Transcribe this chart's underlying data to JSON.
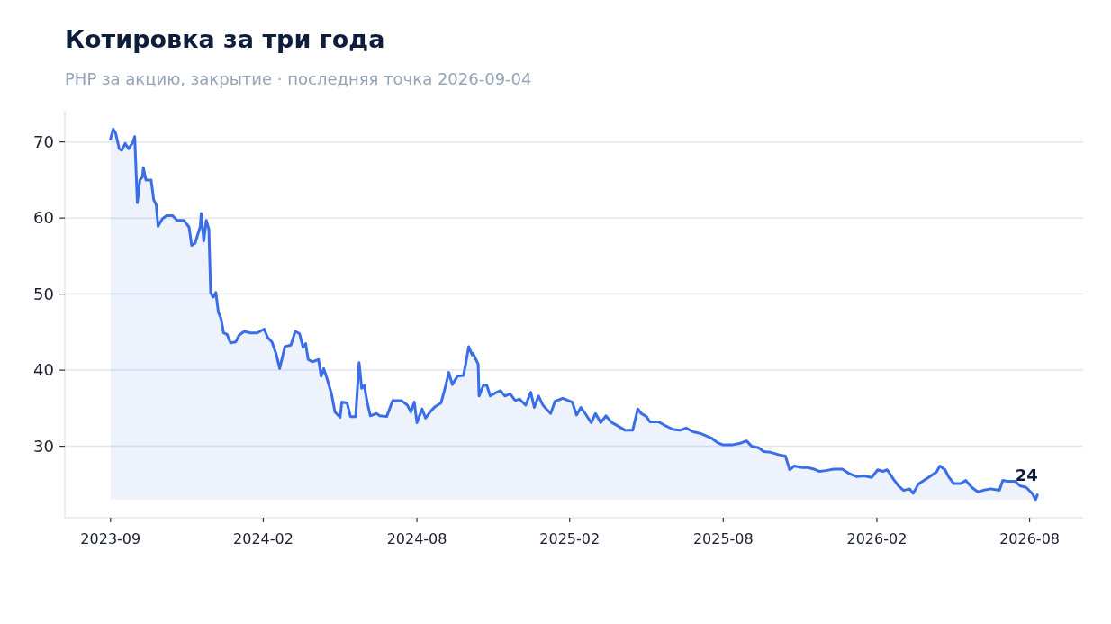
{
  "chart_data": {
    "type": "area",
    "title": "Котировка за три года",
    "subtitle": "PHP за акцию, закрытие · последняя точка 2026-09-04",
    "series": [
      {
        "color": "#3a6ee8",
        "x": [
          "2023-09-04",
          "2023-09-07",
          "2023-09-10",
          "2023-09-14",
          "2023-09-17",
          "2023-09-21",
          "2023-09-25",
          "2023-09-30",
          "2023-10-02",
          "2023-10-05",
          "2023-10-08",
          "2023-10-11",
          "2023-10-12",
          "2023-10-15",
          "2023-10-21",
          "2023-10-24",
          "2023-10-27",
          "2023-10-29",
          "2023-11-03",
          "2023-11-08",
          "2023-11-15",
          "2023-11-20",
          "2023-11-28",
          "2023-12-04",
          "2023-12-07",
          "2023-12-11",
          "2023-12-17",
          "2023-12-18",
          "2023-12-21",
          "2023-12-24",
          "2023-12-27",
          "2023-12-29",
          "2024-01-01",
          "2024-01-04",
          "2024-01-07",
          "2024-01-10",
          "2024-01-13",
          "2024-01-17",
          "2024-01-21",
          "2024-01-27",
          "2024-01-31",
          "2024-02-06",
          "2024-02-13",
          "2024-02-21",
          "2024-02-29",
          "2024-03-04",
          "2024-03-09",
          "2024-03-14",
          "2024-03-18",
          "2024-03-24",
          "2024-03-31",
          "2024-04-05",
          "2024-04-10",
          "2024-04-14",
          "2024-04-17",
          "2024-04-20",
          "2024-04-25",
          "2024-05-02",
          "2024-05-05",
          "2024-05-08",
          "2024-05-11",
          "2024-05-17",
          "2024-05-21",
          "2024-05-27",
          "2024-05-29",
          "2024-06-04",
          "2024-06-08",
          "2024-06-14",
          "2024-06-18",
          "2024-06-21",
          "2024-06-24",
          "2024-06-27",
          "2024-07-01",
          "2024-07-08",
          "2024-07-12",
          "2024-07-20",
          "2024-07-27",
          "2024-08-06",
          "2024-08-13",
          "2024-08-17",
          "2024-08-21",
          "2024-08-24",
          "2024-08-30",
          "2024-09-03",
          "2024-09-09",
          "2024-09-14",
          "2024-09-21",
          "2024-09-26",
          "2024-09-30",
          "2024-10-04",
          "2024-10-10",
          "2024-10-17",
          "2024-10-20",
          "2024-10-23",
          "2024-10-27",
          "2024-10-28",
          "2024-11-03",
          "2024-11-04",
          "2024-11-09",
          "2024-11-13",
          "2024-11-17",
          "2024-11-23",
          "2024-11-29",
          "2024-12-04",
          "2024-12-10",
          "2024-12-16",
          "2024-12-21",
          "2024-12-28",
          "2025-01-03",
          "2025-01-07",
          "2025-01-12",
          "2025-01-17",
          "2025-01-26",
          "2025-01-31",
          "2025-02-09",
          "2025-02-20",
          "2025-02-25",
          "2025-03-02",
          "2025-03-07",
          "2025-03-14",
          "2025-03-19",
          "2025-03-25",
          "2025-03-31",
          "2025-04-07",
          "2025-04-15",
          "2025-04-22",
          "2025-05-01",
          "2025-05-07",
          "2025-05-11",
          "2025-05-17",
          "2025-05-21",
          "2025-05-31",
          "2025-06-08",
          "2025-06-17",
          "2025-06-25",
          "2025-07-02",
          "2025-07-10",
          "2025-07-18",
          "2025-07-31",
          "2025-08-07",
          "2025-08-13",
          "2025-08-18",
          "2025-08-25",
          "2025-09-03",
          "2025-09-10",
          "2025-09-16",
          "2025-09-24",
          "2025-09-30",
          "2025-10-08",
          "2025-10-17",
          "2025-10-25",
          "2025-10-30",
          "2025-11-04",
          "2025-11-13",
          "2025-11-20",
          "2025-11-27",
          "2025-12-03",
          "2025-12-11",
          "2025-12-20",
          "2025-12-30",
          "2026-01-07",
          "2026-01-16",
          "2026-01-24",
          "2026-02-02",
          "2026-02-09",
          "2026-02-15",
          "2026-02-20",
          "2026-02-27",
          "2026-03-05",
          "2026-03-11",
          "2026-03-18",
          "2026-03-22",
          "2026-03-28",
          "2026-04-02",
          "2026-04-10",
          "2026-04-18",
          "2026-04-22",
          "2026-04-28",
          "2026-05-02",
          "2026-05-08",
          "2026-05-16",
          "2026-05-22",
          "2026-05-29",
          "2026-06-05",
          "2026-06-11",
          "2026-06-20",
          "2026-06-30",
          "2026-07-04",
          "2026-07-09",
          "2026-07-18",
          "2026-07-24",
          "2026-07-31",
          "2026-08-07",
          "2026-08-11",
          "2026-08-13"
        ],
        "values": [
          70.4,
          71.7,
          71.1,
          69.1,
          68.9,
          69.8,
          69.1,
          70.0,
          70.7,
          62.0,
          65.0,
          65.4,
          66.6,
          65.0,
          65.0,
          62.4,
          61.7,
          58.9,
          59.9,
          60.3,
          60.3,
          59.7,
          59.7,
          58.8,
          56.4,
          56.7,
          58.9,
          60.6,
          57.0,
          59.7,
          58.5,
          50.2,
          49.6,
          50.2,
          47.6,
          46.8,
          44.9,
          44.7,
          43.6,
          43.7,
          44.6,
          45.1,
          44.9,
          44.9,
          45.4,
          44.3,
          43.7,
          42.1,
          40.2,
          43.1,
          43.3,
          45.1,
          44.8,
          43.0,
          43.5,
          41.4,
          41.1,
          41.4,
          39.2,
          40.2,
          39.2,
          36.9,
          34.5,
          33.8,
          35.8,
          35.7,
          33.9,
          33.9,
          41.0,
          37.6,
          38.0,
          36.0,
          34.0,
          34.3,
          34.0,
          33.9,
          36.0,
          36.0,
          35.4,
          34.5,
          35.8,
          33.1,
          34.9,
          33.7,
          34.6,
          35.2,
          35.7,
          37.8,
          39.7,
          38.1,
          39.2,
          39.3,
          41.1,
          43.1,
          42.0,
          42.2,
          40.8,
          36.6,
          38.0,
          38.0,
          36.6,
          37.0,
          37.3,
          36.6,
          36.9,
          36.0,
          36.2,
          35.4,
          37.1,
          35.1,
          36.6,
          35.4,
          34.3,
          35.9,
          36.3,
          35.8,
          34.1,
          35.1,
          34.3,
          33.1,
          34.3,
          33.1,
          34.0,
          33.1,
          32.6,
          32.1,
          32.1,
          34.9,
          34.3,
          33.9,
          33.2,
          33.2,
          32.7,
          32.2,
          32.1,
          32.4,
          31.9,
          31.7,
          31.1,
          30.5,
          30.2,
          30.2,
          30.2,
          30.4,
          30.7,
          30.0,
          29.8,
          29.3,
          29.2,
          28.9,
          28.7,
          26.9,
          27.4,
          27.2,
          27.2,
          27.0,
          26.7,
          26.8,
          27.0,
          27.0,
          26.4,
          26.0,
          26.1,
          25.9,
          26.9,
          26.7,
          26.9,
          25.7,
          24.8,
          24.2,
          24.4,
          23.8,
          25.0,
          25.4,
          26.0,
          26.6,
          27.4,
          26.9,
          26.0,
          25.1,
          25.1,
          25.5,
          24.6,
          24.0,
          24.2,
          24.4,
          24.2,
          25.5,
          25.4,
          25.4,
          24.8,
          24.6,
          23.8,
          23.0,
          23.6
        ]
      }
    ],
    "xlim": [
      "2023-07-13",
      "2026-10-05"
    ],
    "xticks": [
      {
        "value": "2023-09-04",
        "label": "2023-09"
      },
      {
        "value": "2024-02-28",
        "label": "2024-02"
      },
      {
        "value": "2024-08-24",
        "label": "2024-08"
      },
      {
        "value": "2025-02-17",
        "label": "2025-02"
      },
      {
        "value": "2025-08-14",
        "label": "2025-08"
      },
      {
        "value": "2026-02-08",
        "label": "2026-02"
      },
      {
        "value": "2026-08-04",
        "label": "2026-08"
      }
    ],
    "ylim": [
      20.6,
      74.1
    ],
    "yticks": [
      30,
      40,
      50,
      60,
      70
    ],
    "grid": "y",
    "annotations": [
      {
        "text": "24",
        "x": "2026-08-13",
        "y": 23.6
      }
    ]
  }
}
